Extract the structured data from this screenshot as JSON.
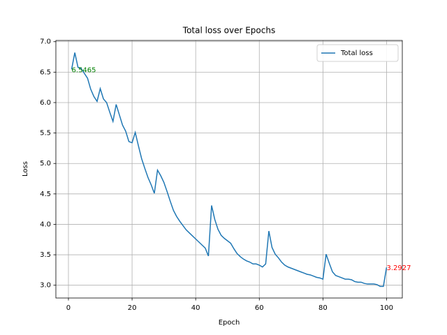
{
  "chart_data": {
    "type": "line",
    "title": "Total loss over Epochs",
    "x_label": "Epoch",
    "y_label": "Loss",
    "x": [
      1,
      2,
      3,
      4,
      5,
      6,
      7,
      8,
      9,
      10,
      11,
      12,
      13,
      14,
      15,
      16,
      17,
      18,
      19,
      20,
      21,
      22,
      23,
      24,
      25,
      26,
      27,
      28,
      29,
      30,
      31,
      32,
      33,
      34,
      35,
      36,
      37,
      38,
      39,
      40,
      41,
      42,
      43,
      44,
      45,
      46,
      47,
      48,
      49,
      50,
      51,
      52,
      53,
      54,
      55,
      56,
      57,
      58,
      59,
      60,
      61,
      62,
      63,
      64,
      65,
      66,
      67,
      68,
      69,
      70,
      71,
      72,
      73,
      74,
      75,
      76,
      77,
      78,
      79,
      80,
      81,
      82,
      83,
      84,
      85,
      86,
      87,
      88,
      89,
      90,
      91,
      92,
      93,
      94,
      95,
      96,
      97,
      98,
      99,
      100
    ],
    "series": [
      {
        "name": "Total loss",
        "color": "#1f77b4",
        "values": [
          6.5465,
          6.82,
          6.58,
          6.56,
          6.48,
          6.4,
          6.22,
          6.1,
          6.02,
          6.23,
          6.06,
          6.0,
          5.84,
          5.69,
          5.97,
          5.8,
          5.63,
          5.53,
          5.36,
          5.34,
          5.51,
          5.29,
          5.08,
          4.92,
          4.77,
          4.65,
          4.51,
          4.89,
          4.8,
          4.69,
          4.54,
          4.38,
          4.23,
          4.13,
          4.05,
          3.98,
          3.91,
          3.86,
          3.81,
          3.76,
          3.71,
          3.66,
          3.61,
          3.48,
          4.31,
          4.08,
          3.92,
          3.82,
          3.77,
          3.73,
          3.69,
          3.6,
          3.52,
          3.47,
          3.43,
          3.4,
          3.38,
          3.35,
          3.35,
          3.33,
          3.3,
          3.35,
          3.89,
          3.62,
          3.51,
          3.45,
          3.38,
          3.33,
          3.3,
          3.28,
          3.26,
          3.24,
          3.22,
          3.2,
          3.18,
          3.17,
          3.15,
          3.13,
          3.12,
          3.1,
          3.51,
          3.36,
          3.22,
          3.16,
          3.14,
          3.12,
          3.1,
          3.1,
          3.09,
          3.06,
          3.05,
          3.05,
          3.03,
          3.02,
          3.02,
          3.02,
          3.01,
          2.98,
          2.98,
          3.2927
        ]
      }
    ],
    "annotations": [
      {
        "text": "6.5465",
        "x": 1,
        "y": 6.5465,
        "color": "green"
      },
      {
        "text": "3.2927",
        "x": 100,
        "y": 3.2927,
        "color": "red"
      }
    ],
    "xlim": [
      -3.95,
      104.95
    ],
    "ylim": [
      2.79,
      7.02
    ],
    "xticks": [
      0,
      20,
      40,
      60,
      80,
      100
    ],
    "yticks": [
      {
        "value": 3,
        "label": "3.0"
      },
      {
        "value": 3.5,
        "label": "3.5"
      },
      {
        "value": 4,
        "label": "4.0"
      },
      {
        "value": 4.5,
        "label": "4.5"
      },
      {
        "value": 5,
        "label": "5.0"
      },
      {
        "value": 5.5,
        "label": "5.5"
      },
      {
        "value": 6,
        "label": "6.0"
      },
      {
        "value": 6.5,
        "label": "6.5"
      },
      {
        "value": 7,
        "label": "7.0"
      }
    ],
    "grid": true,
    "legend": "upper right"
  }
}
